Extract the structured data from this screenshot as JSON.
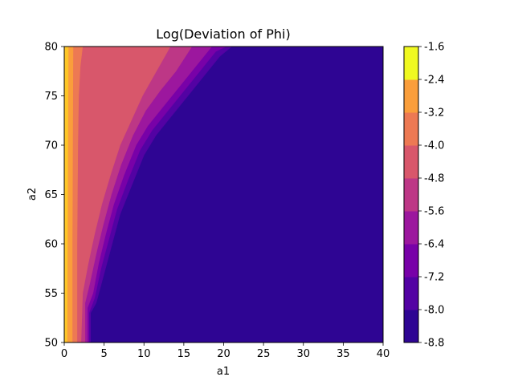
{
  "chart_data": {
    "type": "heatmap",
    "subtype": "filled-contour",
    "title": "Log(Deviation of Phi)",
    "xlabel": "a1",
    "ylabel": "a2",
    "xlim": [
      0,
      40
    ],
    "ylim": [
      50,
      80
    ],
    "x_ticks": [
      0,
      5,
      10,
      15,
      20,
      25,
      30,
      35,
      40
    ],
    "y_ticks": [
      50,
      55,
      60,
      65,
      70,
      75,
      80
    ],
    "grid": false,
    "colormap": "plasma",
    "colorbar": {
      "levels": [
        -8.8,
        -8.0,
        -7.2,
        -6.4,
        -5.6,
        -4.8,
        -4.0,
        -3.2,
        -2.4,
        -1.6
      ],
      "tick_labels": [
        "-8.8",
        "-8.0",
        "-7.2",
        "-6.4",
        "-5.6",
        "-4.8",
        "-4.0",
        "-3.2",
        "-2.4",
        "-1.6"
      ],
      "colors": [
        "#2e0593",
        "#5302a3",
        "#7801a8",
        "#9c179e",
        "#bd3786",
        "#d8576b",
        "#ed7953",
        "#fa9e3b",
        "#fdc627"
      ],
      "extra_color": "#f0f921"
    },
    "contour_boundaries": [
      {
        "level": -8.0,
        "points": [
          [
            3.3,
            50
          ],
          [
            3.3,
            53
          ],
          [
            4,
            54
          ],
          [
            5,
            57
          ],
          [
            6,
            60
          ],
          [
            7,
            63
          ],
          [
            8.5,
            66
          ],
          [
            10,
            69
          ],
          [
            11.5,
            71
          ],
          [
            13.5,
            73
          ],
          [
            15.5,
            75
          ],
          [
            17.5,
            77
          ],
          [
            19.5,
            79
          ],
          [
            21,
            80
          ]
        ]
      },
      {
        "level": -7.2,
        "points": [
          [
            3.1,
            50
          ],
          [
            3.1,
            53
          ],
          [
            3.8,
            54.5
          ],
          [
            4.6,
            57.5
          ],
          [
            5.6,
            60.5
          ],
          [
            6.6,
            63.5
          ],
          [
            8,
            66.5
          ],
          [
            9.5,
            69.5
          ],
          [
            11,
            71.5
          ],
          [
            13,
            73.5
          ],
          [
            15,
            75.5
          ],
          [
            17,
            77.5
          ],
          [
            19,
            79.5
          ],
          [
            20.3,
            80
          ]
        ]
      },
      {
        "level": -6.4,
        "points": [
          [
            2.9,
            50
          ],
          [
            2.9,
            53.5
          ],
          [
            3.6,
            55
          ],
          [
            4.3,
            58
          ],
          [
            5.2,
            61
          ],
          [
            6.2,
            64
          ],
          [
            7.5,
            67
          ],
          [
            9,
            70
          ],
          [
            10.5,
            72
          ],
          [
            12.5,
            74
          ],
          [
            14.5,
            76
          ],
          [
            16.5,
            78
          ],
          [
            18.5,
            80
          ]
        ]
      },
      {
        "level": -5.6,
        "points": [
          [
            2.6,
            50
          ],
          [
            2.6,
            54
          ],
          [
            3.2,
            56
          ],
          [
            4,
            59
          ],
          [
            4.9,
            62
          ],
          [
            5.9,
            65
          ],
          [
            7.1,
            68
          ],
          [
            8.6,
            71
          ],
          [
            10.2,
            73.5
          ],
          [
            12,
            75.5
          ],
          [
            14,
            77.5
          ],
          [
            16,
            80
          ]
        ]
      },
      {
        "level": -4.8,
        "points": [
          [
            2.1,
            50
          ],
          [
            2.3,
            55
          ],
          [
            3,
            58
          ],
          [
            3.8,
            61
          ],
          [
            4.7,
            64
          ],
          [
            5.8,
            67
          ],
          [
            7,
            70
          ],
          [
            8.4,
            72.5
          ],
          [
            9.8,
            75
          ],
          [
            11.2,
            77
          ],
          [
            12.6,
            79
          ],
          [
            13.3,
            80
          ]
        ]
      },
      {
        "level": -4.0,
        "points": [
          [
            1.6,
            50
          ],
          [
            1.6,
            60
          ],
          [
            1.7,
            70
          ],
          [
            1.8,
            75
          ],
          [
            2,
            78
          ],
          [
            2.3,
            80
          ]
        ]
      },
      {
        "level": -3.2,
        "points": [
          [
            1.0,
            50
          ],
          [
            1.0,
            60
          ],
          [
            1.05,
            70
          ],
          [
            1.1,
            80
          ]
        ]
      },
      {
        "level": -2.4,
        "points": [
          [
            0.35,
            50
          ],
          [
            0.4,
            60
          ],
          [
            0.45,
            70
          ],
          [
            0.5,
            80
          ]
        ]
      }
    ]
  }
}
